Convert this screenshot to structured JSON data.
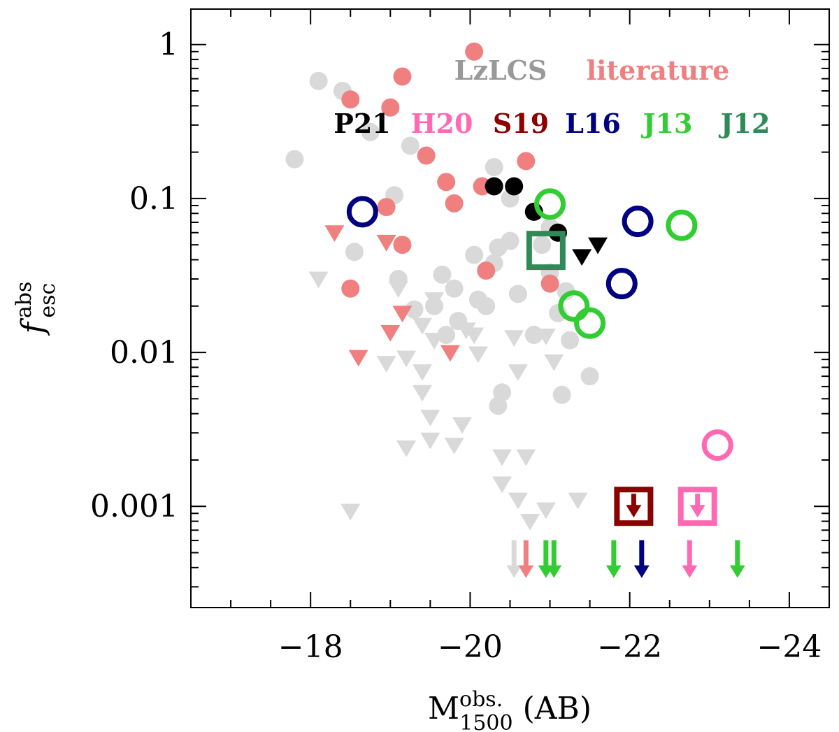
{
  "chart_data": {
    "type": "scatter",
    "title": "",
    "xlabel": "M_1500^obs. (AB)",
    "ylabel": "f_esc^abs",
    "x_label_parts": {
      "main": "M",
      "sup": "obs.",
      "sub": "1500",
      "tail": "(AB)"
    },
    "y_label_parts": {
      "main": "f",
      "sup": "abs",
      "sub": "esc"
    },
    "xlim": [
      -16.5,
      -24.5
    ],
    "ylim": [
      0.00022,
      1.7
    ],
    "yscale": "log",
    "xticks": [
      {
        "value": -18,
        "label": "−18"
      },
      {
        "value": -20,
        "label": "−20"
      },
      {
        "value": -22,
        "label": "−22"
      },
      {
        "value": -24,
        "label": "−24"
      }
    ],
    "yticks": [
      {
        "value": 1,
        "label": "1"
      },
      {
        "value": 0.1,
        "label": "0.1"
      },
      {
        "value": 0.01,
        "label": "0.01"
      },
      {
        "value": 0.001,
        "label": "0.001"
      }
    ],
    "legend": {
      "row1": [
        {
          "label": "LzLCS",
          "color": "#999999"
        },
        {
          "label": "literature",
          "color": "#f08080"
        }
      ],
      "row2": [
        {
          "label": "P21",
          "color": "#000000"
        },
        {
          "label": "H20",
          "color": "#ff69b4"
        },
        {
          "label": "S19",
          "color": "#8b0000"
        },
        {
          "label": "L16",
          "color": "#000080"
        },
        {
          "label": "J13",
          "color": "#32cd32"
        },
        {
          "label": "J12",
          "color": "#2e8b57"
        }
      ]
    },
    "series": [
      {
        "name": "LzLCS",
        "color": "#d9d9d9",
        "detections": [
          [
            -18.1,
            0.58
          ],
          [
            -18.4,
            0.5
          ],
          [
            -18.75,
            0.27
          ],
          [
            -19.25,
            0.22
          ],
          [
            -17.8,
            0.18
          ],
          [
            -19.05,
            0.105
          ],
          [
            -20.3,
            0.16
          ],
          [
            -20.5,
            0.1
          ],
          [
            -18.55,
            0.045
          ],
          [
            -19.1,
            0.03
          ],
          [
            -19.65,
            0.032
          ],
          [
            -19.8,
            0.026
          ],
          [
            -20.05,
            0.043
          ],
          [
            -20.3,
            0.038
          ],
          [
            -20.5,
            0.053
          ],
          [
            -20.35,
            0.048
          ],
          [
            -19.55,
            0.02
          ],
          [
            -19.3,
            0.019
          ],
          [
            -20.1,
            0.022
          ],
          [
            -20.2,
            0.02
          ],
          [
            -19.85,
            0.016
          ],
          [
            -19.7,
            0.013
          ],
          [
            -20.6,
            0.024
          ],
          [
            -21,
            0.065
          ],
          [
            -20.9,
            0.05
          ],
          [
            -21.0,
            0.033
          ],
          [
            -21.2,
            0.025
          ],
          [
            -21.1,
            0.018
          ],
          [
            -21.25,
            0.012
          ],
          [
            -20.8,
            0.013
          ],
          [
            -21.5,
            0.007
          ],
          [
            -20.4,
            0.0055
          ],
          [
            -20.35,
            0.0045
          ],
          [
            -21.15,
            0.0053
          ]
        ],
        "upper_limits": [
          [
            -18.1,
            0.03
          ],
          [
            -19.1,
            0.026
          ],
          [
            -19.55,
            0.022
          ],
          [
            -19.4,
            0.015
          ],
          [
            -19.55,
            0.012
          ],
          [
            -19.95,
            0.014
          ],
          [
            -20.05,
            0.013
          ],
          [
            -19.2,
            0.0092
          ],
          [
            -18.95,
            0.0085
          ],
          [
            -19.4,
            0.0075
          ],
          [
            -19.4,
            0.0055
          ],
          [
            -20.1,
            0.0098
          ],
          [
            -20.6,
            0.0075
          ],
          [
            -20.55,
            0.0125
          ],
          [
            -20.95,
            0.0128
          ],
          [
            -21.05,
            0.0087
          ],
          [
            -19.5,
            0.0038
          ],
          [
            -19.9,
            0.0034
          ],
          [
            -19.5,
            0.0027
          ],
          [
            -19.2,
            0.0024
          ],
          [
            -19.8,
            0.0025
          ],
          [
            -20.4,
            0.0021
          ],
          [
            -20.7,
            0.0021
          ],
          [
            -20.4,
            0.0014
          ],
          [
            -20.6,
            0.0011
          ],
          [
            -20.95,
            0.00095
          ],
          [
            -21.35,
            0.0011
          ],
          [
            -20.75,
            0.0008
          ],
          [
            -18.5,
            0.00093
          ]
        ],
        "limit_arrows_x": [
          -20.55
        ]
      },
      {
        "name": "literature",
        "color": "#f08080",
        "detections": [
          [
            -20.05,
            0.9
          ],
          [
            -19.15,
            0.62
          ],
          [
            -18.5,
            0.44
          ],
          [
            -19.0,
            0.39
          ],
          [
            -19.45,
            0.19
          ],
          [
            -20.7,
            0.175
          ],
          [
            -19.7,
            0.128
          ],
          [
            -20.15,
            0.12
          ],
          [
            -19.8,
            0.093
          ],
          [
            -18.95,
            0.088
          ],
          [
            -19.15,
            0.05
          ],
          [
            -20.2,
            0.034
          ],
          [
            -21.0,
            0.028
          ],
          [
            -18.5,
            0.026
          ],
          [
            -21.1,
            0.06
          ]
        ],
        "upper_limits": [
          [
            -18.3,
            0.06
          ],
          [
            -18.95,
            0.052
          ],
          [
            -19.15,
            0.018
          ],
          [
            -19.0,
            0.0135
          ],
          [
            -18.6,
            0.0093
          ],
          [
            -19.75,
            0.01
          ]
        ],
        "limit_arrows_x": [
          -20.7
        ]
      },
      {
        "name": "P21",
        "color": "#000000",
        "marker": "filled-circle",
        "detections": [
          [
            -20.3,
            0.12
          ],
          [
            -20.55,
            0.12
          ],
          [
            -20.8,
            0.082
          ],
          [
            -21.1,
            0.06
          ]
        ],
        "upper_limits": [
          [
            -21.4,
            0.042
          ],
          [
            -21.6,
            0.05
          ]
        ]
      },
      {
        "name": "H20",
        "color": "#ff69b4",
        "marker": "open-circle",
        "detections": [
          [
            -23.1,
            0.0025
          ]
        ],
        "upper_limit_squares": [
          [
            -22.85,
            0.001
          ]
        ],
        "limit_arrows_x": [
          -22.75
        ]
      },
      {
        "name": "S19",
        "color": "#8b0000",
        "marker": "open-square",
        "upper_limit_squares": [
          [
            -22.05,
            0.001
          ]
        ]
      },
      {
        "name": "L16",
        "color": "#000080",
        "marker": "open-circle",
        "detections": [
          [
            -18.65,
            0.082
          ],
          [
            -22.1,
            0.071
          ],
          [
            -21.9,
            0.028
          ]
        ],
        "limit_arrows_x": [
          -22.15
        ]
      },
      {
        "name": "J13",
        "color": "#32cd32",
        "marker": "open-circle",
        "detections": [
          [
            -21.0,
            0.092
          ],
          [
            -22.65,
            0.067
          ],
          [
            -21.3,
            0.02
          ],
          [
            -21.5,
            0.0155
          ]
        ],
        "limit_arrows_x": [
          -20.95,
          -21.05,
          -21.8,
          -23.35
        ]
      },
      {
        "name": "J12",
        "color": "#2e8b57",
        "marker": "open-square",
        "detections": [
          [
            -20.95,
            0.046
          ]
        ]
      }
    ],
    "arrow_level": 0.00045,
    "grid": false,
    "legend_position": "top-right, inside axes"
  }
}
